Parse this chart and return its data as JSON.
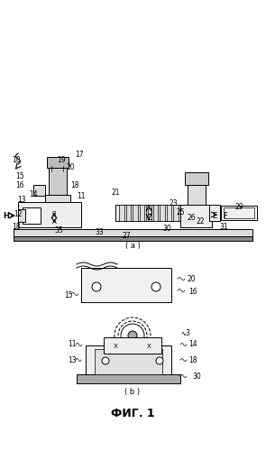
{
  "bg_color": "#ffffff",
  "line_color": "#000000",
  "gray_color": "#aaaaaa",
  "light_gray": "#cccccc",
  "fig_label": "ФИГ. 1",
  "sub_a": "(a)",
  "sub_b": "(b)"
}
